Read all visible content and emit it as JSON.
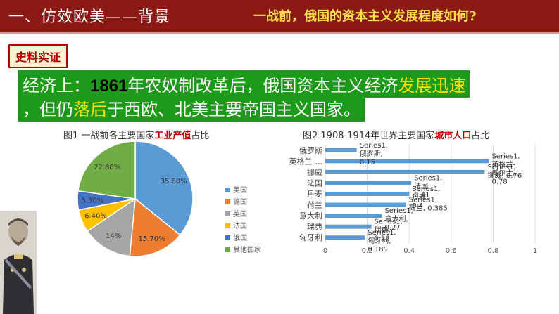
{
  "header": {
    "title": "一、仿效欧美——背景",
    "question": "一战前，俄国的资本主义发展程度如何?",
    "bg_color": "#8b1a14",
    "question_color": "#ffe14a"
  },
  "badge": {
    "label": "史料实证"
  },
  "evidence": {
    "line1_a": "经济上：",
    "line1_year": "1861",
    "line1_b": "年农奴制改革后，俄国资本主义经济",
    "line1_hl": "发展迅速",
    "line2_a": "，但仍",
    "line2_hl": "落后",
    "line2_b": "于西欧、北美主要帝国主义国家。"
  },
  "figure1": {
    "title_a": "图1 一战前各主要国家",
    "title_hl": "工业产值",
    "title_b": "占比"
  },
  "figure2": {
    "title_a": "图2 1908-1914年世界主要国家",
    "title_hl": "城市人口",
    "title_b": "占比"
  },
  "chart_data": [
    {
      "type": "pie",
      "title": "图1 一战前各主要国家工业产值占比",
      "legend_position": "right",
      "slices": [
        {
          "label": "美国",
          "value": 35.8,
          "display": "35.80%",
          "color": "#5b9bd5"
        },
        {
          "label": "德国",
          "value": 15.7,
          "display": "15.70%",
          "color": "#ed7d31"
        },
        {
          "label": "英国",
          "value": 14.0,
          "display": "14%",
          "color": "#a5a5a5"
        },
        {
          "label": "法国",
          "value": 6.4,
          "display": "6.40%",
          "color": "#ffc000"
        },
        {
          "label": "俄国",
          "value": 5.3,
          "display": "5.30%",
          "color": "#4472c4"
        },
        {
          "label": "其他国家",
          "value": 22.8,
          "display": "22.80%",
          "color": "#70ad47"
        }
      ]
    },
    {
      "type": "bar",
      "orientation": "horizontal",
      "title": "图2 1908-1914年世界主要国家城市人口占比",
      "series_name": "Series1",
      "color": "#5b9bd5",
      "xlim": [
        0,
        1
      ],
      "xticks": [
        0,
        0.2,
        0.4,
        0.6,
        0.8,
        1
      ],
      "xtick_labels": [
        "0",
        "0.2",
        "0.4",
        "0.6",
        "0.8",
        "1"
      ],
      "grid": true,
      "categories": [
        "俄罗斯",
        "英格兰-...",
        "挪威",
        "法国",
        "丹麦",
        "荷兰",
        "意大利",
        "瑞典",
        "匈牙利"
      ],
      "values": [
        0.15,
        0.78,
        0.76,
        0.41,
        0.4,
        0.385,
        0.27,
        0.22,
        0.189
      ],
      "data_labels": [
        {
          "lines": [
            "Series1,",
            "俄罗斯,",
            "0.15"
          ]
        },
        {
          "lines": [
            "Series1,",
            "英格兰-",
            "威尔士,",
            "0.78"
          ]
        },
        {
          "lines": [
            "Series1,",
            "挪威, 0.76"
          ]
        },
        {
          "lines": [
            "Series1,",
            "法国,",
            "0.41"
          ]
        },
        {
          "lines": [
            "Series1,",
            "丹麦,",
            "0.4"
          ]
        },
        {
          "lines": [
            "Series1,",
            "荷兰, 0.385"
          ]
        },
        {
          "lines": [
            "Series1,",
            "意大利,",
            "0.27"
          ]
        },
        {
          "lines": [
            "Series1,",
            "瑞典,",
            "0.22"
          ]
        },
        {
          "lines": [
            "Series1,",
            "匈牙利,",
            "0.189"
          ]
        }
      ]
    }
  ]
}
